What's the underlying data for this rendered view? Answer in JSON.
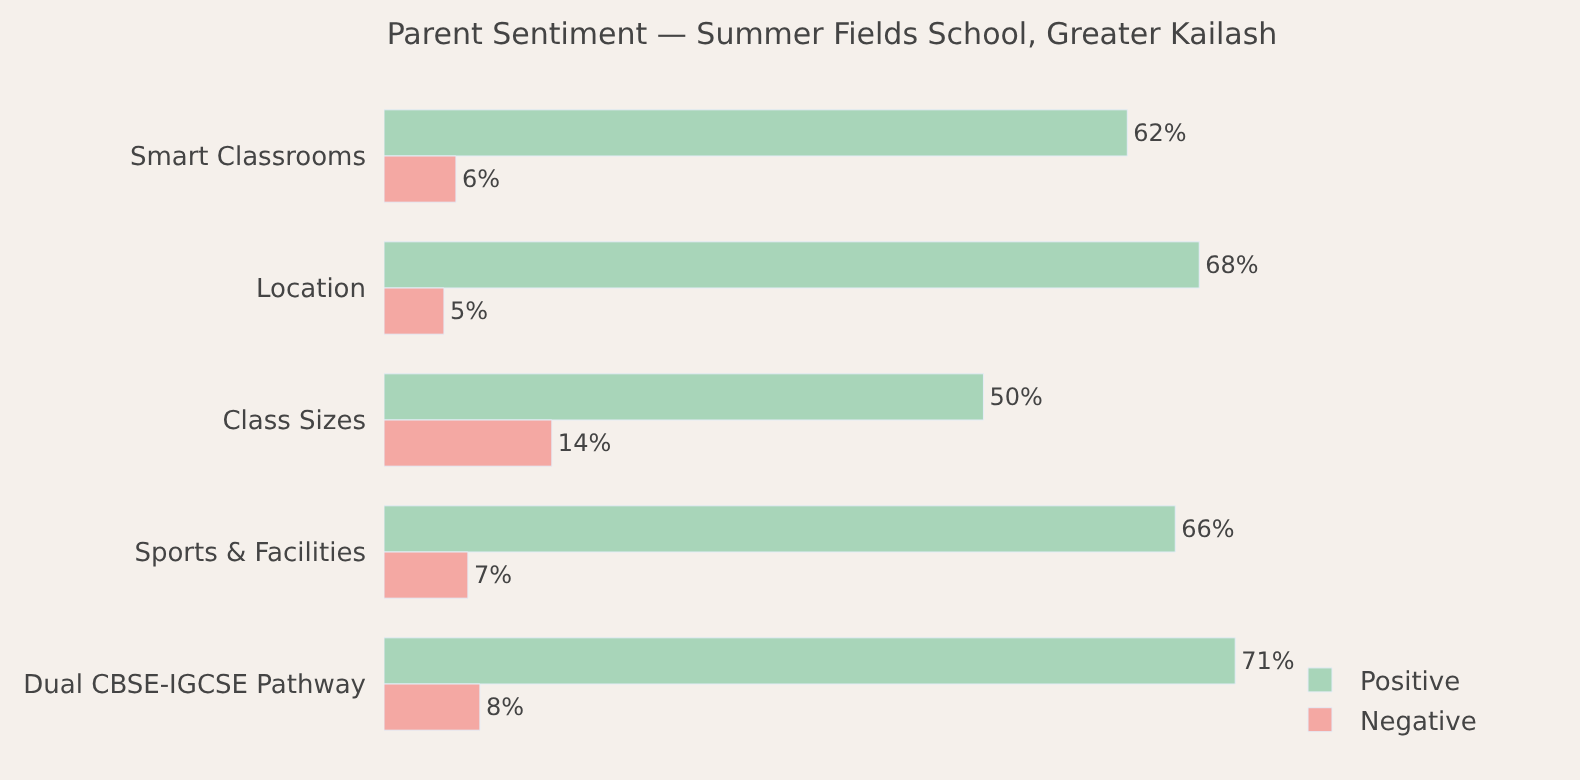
{
  "chart_data": {
    "type": "bar",
    "orientation": "horizontal",
    "title": "Parent Sentiment — Summer Fields School, Greater Kailash",
    "categories": [
      "Smart Classrooms",
      "Location",
      "Class Sizes",
      "Sports & Facilities",
      "Dual CBSE-IGCSE Pathway"
    ],
    "series": [
      {
        "name": "Positive",
        "color": "#a8d5b9",
        "values": [
          62,
          68,
          50,
          66,
          71
        ],
        "value_labels": [
          "62%",
          "68%",
          "50%",
          "66%",
          "71%"
        ]
      },
      {
        "name": "Negative",
        "color": "#f4a8a3",
        "values": [
          6,
          5,
          14,
          7,
          8
        ],
        "value_labels": [
          "6%",
          "5%",
          "14%",
          "7%",
          "8%"
        ]
      }
    ],
    "tick_labels": "y",
    "grid": false,
    "legend": "bottom right"
  }
}
